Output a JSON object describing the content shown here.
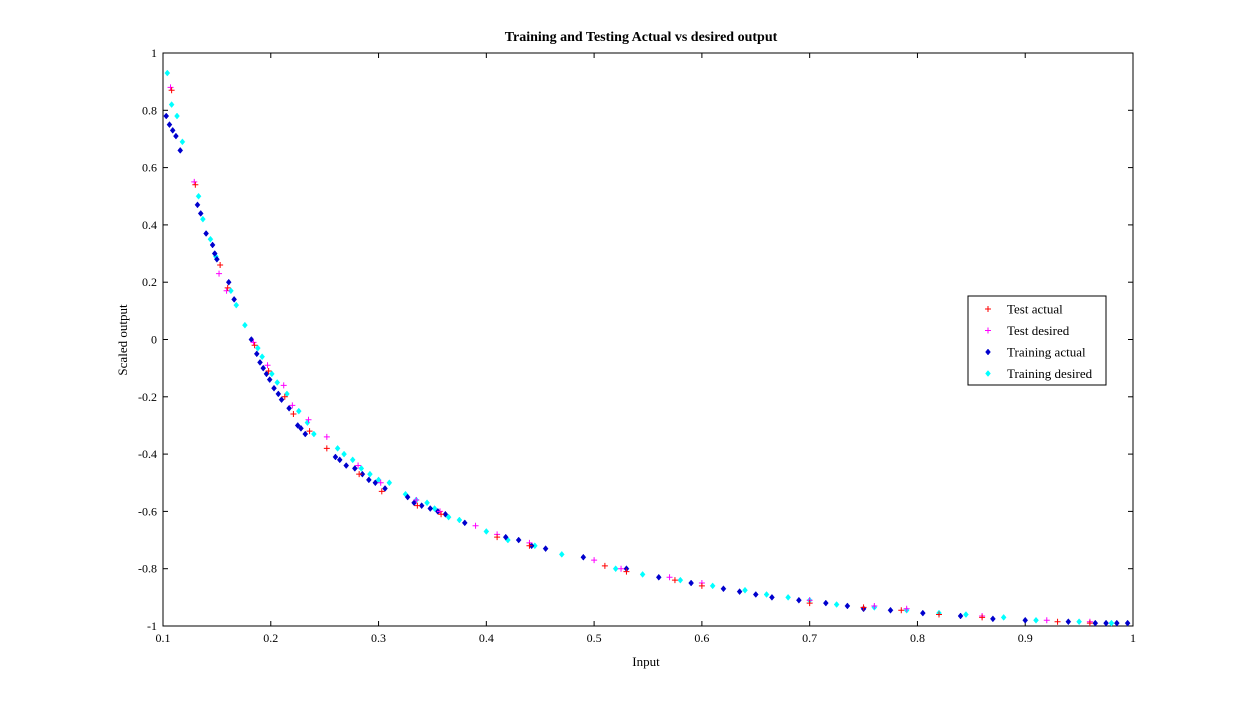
{
  "chart_data": {
    "type": "scatter",
    "title": "Training and Testing Actual vs desired output",
    "xlabel": "Input",
    "ylabel": "Scaled output",
    "xlim": [
      0.1,
      1
    ],
    "ylim": [
      -1,
      1
    ],
    "xticks": [
      0.1,
      0.2,
      0.3,
      0.4,
      0.5,
      0.6,
      0.7,
      0.8,
      0.9,
      1
    ],
    "xtick_labels": [
      "0.1",
      "0.2",
      "0.3",
      "0.4",
      "0.5",
      "0.6",
      "0.7",
      "0.8",
      "0.9",
      "1"
    ],
    "yticks": [
      -1,
      -0.8,
      -0.6,
      -0.4,
      -0.2,
      0,
      0.2,
      0.4,
      0.6,
      0.8,
      1
    ],
    "ytick_labels": [
      "-1",
      "-0.8",
      "-0.6",
      "-0.4",
      "-0.2",
      "0",
      "0.2",
      "0.4",
      "0.6",
      "0.8",
      "1"
    ],
    "grid": false,
    "legend_position": "right",
    "series": [
      {
        "name": "Test actual",
        "marker": "plus",
        "color": "#ff0000",
        "points": [
          [
            0.108,
            0.87
          ],
          [
            0.13,
            0.54
          ],
          [
            0.153,
            0.26
          ],
          [
            0.16,
            0.18
          ],
          [
            0.185,
            -0.02
          ],
          [
            0.198,
            -0.11
          ],
          [
            0.213,
            -0.2
          ],
          [
            0.221,
            -0.26
          ],
          [
            0.236,
            -0.32
          ],
          [
            0.252,
            -0.38
          ],
          [
            0.282,
            -0.47
          ],
          [
            0.303,
            -0.53
          ],
          [
            0.336,
            -0.58
          ],
          [
            0.358,
            -0.61
          ],
          [
            0.41,
            -0.69
          ],
          [
            0.44,
            -0.72
          ],
          [
            0.51,
            -0.79
          ],
          [
            0.53,
            -0.81
          ],
          [
            0.575,
            -0.84
          ],
          [
            0.6,
            -0.86
          ],
          [
            0.7,
            -0.92
          ],
          [
            0.75,
            -0.935
          ],
          [
            0.785,
            -0.945
          ],
          [
            0.82,
            -0.96
          ],
          [
            0.86,
            -0.97
          ],
          [
            0.93,
            -0.985
          ],
          [
            0.96,
            -0.99
          ]
        ]
      },
      {
        "name": "Test desired",
        "marker": "plus",
        "color": "#ff00ff",
        "points": [
          [
            0.107,
            0.88
          ],
          [
            0.129,
            0.55
          ],
          [
            0.152,
            0.23
          ],
          [
            0.159,
            0.17
          ],
          [
            0.184,
            -0.01
          ],
          [
            0.197,
            -0.09
          ],
          [
            0.212,
            -0.16
          ],
          [
            0.22,
            -0.23
          ],
          [
            0.235,
            -0.28
          ],
          [
            0.252,
            -0.34
          ],
          [
            0.281,
            -0.44
          ],
          [
            0.302,
            -0.5
          ],
          [
            0.335,
            -0.56
          ],
          [
            0.357,
            -0.6
          ],
          [
            0.39,
            -0.65
          ],
          [
            0.41,
            -0.68
          ],
          [
            0.44,
            -0.71
          ],
          [
            0.5,
            -0.77
          ],
          [
            0.525,
            -0.8
          ],
          [
            0.57,
            -0.83
          ],
          [
            0.6,
            -0.85
          ],
          [
            0.7,
            -0.91
          ],
          [
            0.76,
            -0.93
          ],
          [
            0.79,
            -0.94
          ],
          [
            0.86,
            -0.965
          ],
          [
            0.92,
            -0.98
          ],
          [
            0.96,
            -0.985
          ]
        ]
      },
      {
        "name": "Training actual",
        "marker": "diamond",
        "color": "#0000cd",
        "points": [
          [
            0.103,
            0.78
          ],
          [
            0.106,
            0.75
          ],
          [
            0.109,
            0.73
          ],
          [
            0.112,
            0.71
          ],
          [
            0.116,
            0.66
          ],
          [
            0.132,
            0.47
          ],
          [
            0.135,
            0.44
          ],
          [
            0.14,
            0.37
          ],
          [
            0.146,
            0.33
          ],
          [
            0.148,
            0.3
          ],
          [
            0.15,
            0.28
          ],
          [
            0.161,
            0.2
          ],
          [
            0.166,
            0.14
          ],
          [
            0.182,
            0
          ],
          [
            0.187,
            -0.05
          ],
          [
            0.19,
            -0.08
          ],
          [
            0.193,
            -0.1
          ],
          [
            0.196,
            -0.12
          ],
          [
            0.199,
            -0.14
          ],
          [
            0.203,
            -0.17
          ],
          [
            0.207,
            -0.19
          ],
          [
            0.21,
            -0.21
          ],
          [
            0.217,
            -0.24
          ],
          [
            0.225,
            -0.3
          ],
          [
            0.228,
            -0.31
          ],
          [
            0.232,
            -0.33
          ],
          [
            0.26,
            -0.41
          ],
          [
            0.264,
            -0.42
          ],
          [
            0.27,
            -0.44
          ],
          [
            0.278,
            -0.45
          ],
          [
            0.285,
            -0.47
          ],
          [
            0.291,
            -0.49
          ],
          [
            0.297,
            -0.5
          ],
          [
            0.306,
            -0.52
          ],
          [
            0.327,
            -0.55
          ],
          [
            0.333,
            -0.57
          ],
          [
            0.34,
            -0.58
          ],
          [
            0.348,
            -0.59
          ],
          [
            0.355,
            -0.6
          ],
          [
            0.362,
            -0.61
          ],
          [
            0.38,
            -0.64
          ],
          [
            0.418,
            -0.69
          ],
          [
            0.43,
            -0.7
          ],
          [
            0.442,
            -0.72
          ],
          [
            0.455,
            -0.73
          ],
          [
            0.49,
            -0.76
          ],
          [
            0.53,
            -0.8
          ],
          [
            0.56,
            -0.83
          ],
          [
            0.59,
            -0.85
          ],
          [
            0.62,
            -0.87
          ],
          [
            0.635,
            -0.88
          ],
          [
            0.65,
            -0.89
          ],
          [
            0.665,
            -0.9
          ],
          [
            0.69,
            -0.91
          ],
          [
            0.715,
            -0.92
          ],
          [
            0.735,
            -0.93
          ],
          [
            0.75,
            -0.94
          ],
          [
            0.775,
            -0.945
          ],
          [
            0.805,
            -0.955
          ],
          [
            0.84,
            -0.965
          ],
          [
            0.87,
            -0.975
          ],
          [
            0.9,
            -0.98
          ],
          [
            0.94,
            -0.985
          ],
          [
            0.965,
            -0.99
          ],
          [
            0.975,
            -0.99
          ],
          [
            0.985,
            -0.99
          ],
          [
            0.995,
            -0.99
          ]
        ]
      },
      {
        "name": "Training desired",
        "marker": "diamond",
        "color": "#00ffff",
        "points": [
          [
            0.104,
            0.93
          ],
          [
            0.108,
            0.82
          ],
          [
            0.113,
            0.78
          ],
          [
            0.118,
            0.69
          ],
          [
            0.133,
            0.5
          ],
          [
            0.137,
            0.42
          ],
          [
            0.144,
            0.35
          ],
          [
            0.149,
            0.29
          ],
          [
            0.163,
            0.17
          ],
          [
            0.168,
            0.12
          ],
          [
            0.176,
            0.05
          ],
          [
            0.188,
            -0.03
          ],
          [
            0.192,
            -0.06
          ],
          [
            0.201,
            -0.12
          ],
          [
            0.206,
            -0.15
          ],
          [
            0.215,
            -0.19
          ],
          [
            0.226,
            -0.25
          ],
          [
            0.234,
            -0.29
          ],
          [
            0.24,
            -0.33
          ],
          [
            0.262,
            -0.38
          ],
          [
            0.268,
            -0.4
          ],
          [
            0.276,
            -0.42
          ],
          [
            0.284,
            -0.45
          ],
          [
            0.292,
            -0.47
          ],
          [
            0.3,
            -0.49
          ],
          [
            0.31,
            -0.5
          ],
          [
            0.325,
            -0.54
          ],
          [
            0.335,
            -0.56
          ],
          [
            0.345,
            -0.57
          ],
          [
            0.352,
            -0.59
          ],
          [
            0.365,
            -0.62
          ],
          [
            0.375,
            -0.63
          ],
          [
            0.4,
            -0.67
          ],
          [
            0.42,
            -0.7
          ],
          [
            0.445,
            -0.72
          ],
          [
            0.47,
            -0.75
          ],
          [
            0.52,
            -0.8
          ],
          [
            0.545,
            -0.82
          ],
          [
            0.58,
            -0.84
          ],
          [
            0.61,
            -0.86
          ],
          [
            0.64,
            -0.875
          ],
          [
            0.66,
            -0.89
          ],
          [
            0.68,
            -0.9
          ],
          [
            0.7,
            -0.91
          ],
          [
            0.725,
            -0.925
          ],
          [
            0.76,
            -0.935
          ],
          [
            0.79,
            -0.945
          ],
          [
            0.82,
            -0.955
          ],
          [
            0.845,
            -0.96
          ],
          [
            0.88,
            -0.97
          ],
          [
            0.91,
            -0.98
          ],
          [
            0.95,
            -0.985
          ],
          [
            0.98,
            -0.99
          ]
        ]
      }
    ]
  }
}
